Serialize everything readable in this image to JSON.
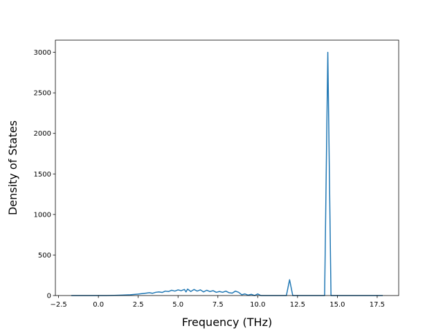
{
  "chart_data": {
    "type": "line",
    "x_label": "Frequency (THz)",
    "y_label": "Density of States",
    "xlim": [
      -2.7,
      18.85
    ],
    "ylim": [
      0,
      3150
    ],
    "xticks": [
      {
        "value": -2.5,
        "label": "−2.5"
      },
      {
        "value": 0,
        "label": "0.0"
      },
      2.5,
      {
        "value": 5,
        "label": "5.0"
      },
      7.5,
      {
        "value": 10,
        "label": "10.0"
      },
      12.5,
      {
        "value": 15,
        "label": "15.0"
      },
      17.5
    ],
    "yticks": [
      0,
      500,
      1000,
      1500,
      2000,
      2500,
      3000
    ],
    "grid": false,
    "series": [
      {
        "color": "#1f77b4",
        "x": [
          -1.7,
          -0.5,
          0.5,
          1.0,
          1.5,
          2.0,
          2.5,
          3.0,
          3.2,
          3.4,
          3.6,
          3.8,
          4.0,
          4.2,
          4.4,
          4.6,
          4.8,
          5.0,
          5.2,
          5.4,
          5.5,
          5.6,
          5.8,
          6.0,
          6.2,
          6.4,
          6.6,
          6.8,
          7.0,
          7.2,
          7.4,
          7.6,
          7.8,
          8.0,
          8.2,
          8.4,
          8.6,
          8.8,
          9.0,
          9.2,
          9.4,
          9.6,
          9.8,
          10.0,
          10.2,
          11.8,
          12.0,
          12.2,
          14.2,
          14.4,
          14.6,
          17.85
        ],
        "values": [
          0,
          0,
          0,
          2,
          5,
          10,
          18,
          30,
          35,
          28,
          40,
          45,
          38,
          55,
          50,
          65,
          55,
          70,
          60,
          75,
          45,
          80,
          50,
          75,
          55,
          70,
          45,
          65,
          50,
          60,
          40,
          50,
          40,
          55,
          35,
          30,
          55,
          40,
          10,
          20,
          5,
          15,
          0,
          20,
          0,
          0,
          195,
          0,
          0,
          3000,
          0,
          0
        ]
      }
    ]
  }
}
